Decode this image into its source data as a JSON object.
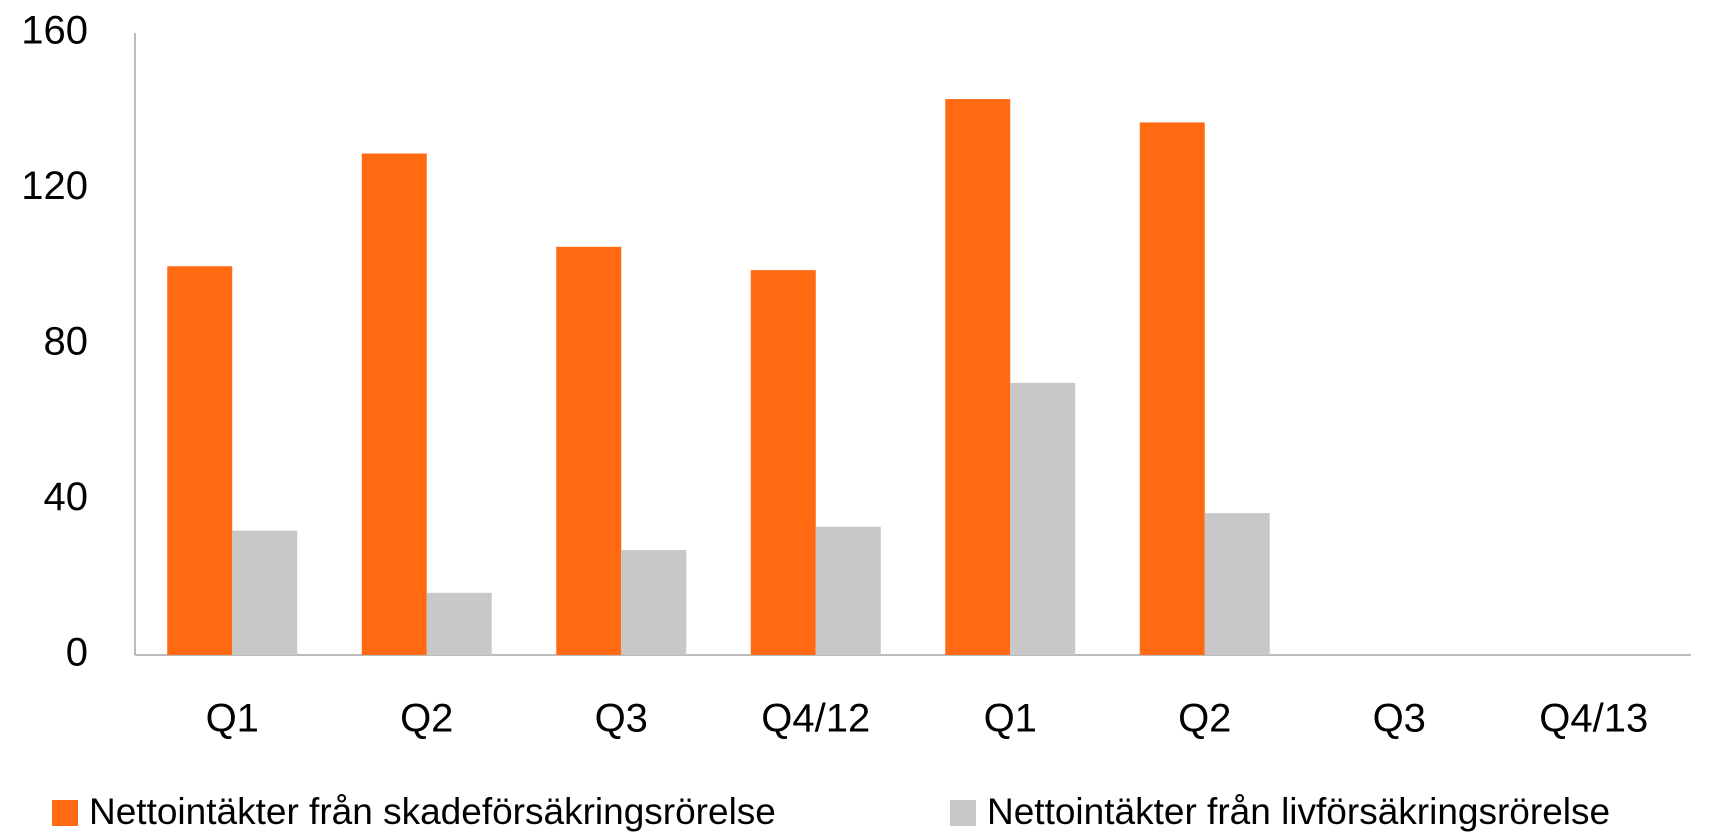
{
  "chart_data": {
    "type": "bar",
    "categories": [
      "Q1",
      "Q2",
      "Q3",
      "Q4/12",
      "Q1",
      "Q2",
      "Q3",
      "Q4/13"
    ],
    "series": [
      {
        "name": "Nettointäkter från skadeförsäkringsrörelse",
        "color": "#ff6a13",
        "values": [
          100,
          129,
          105,
          99,
          143,
          137,
          null,
          null
        ]
      },
      {
        "name": "Nettointäkter från livförsäkringsrörelse",
        "color": "#c8c8c8",
        "values": [
          32,
          16,
          27,
          33,
          70,
          36.5,
          null,
          null
        ]
      }
    ],
    "ylim": [
      0,
      160
    ],
    "yticks": [
      0,
      40,
      80,
      120,
      160
    ],
    "grid": false,
    "legend": "bottom"
  }
}
